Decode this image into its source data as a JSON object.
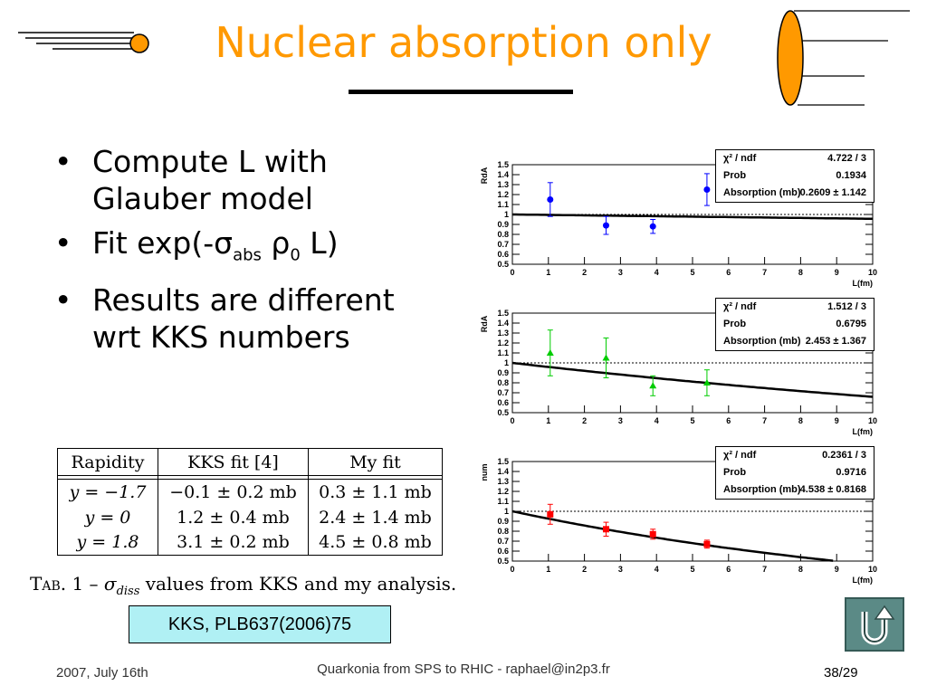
{
  "slide": {
    "title": "Nuclear absorption only",
    "bullets": [
      "Compute L with Glauber model",
      "Fit exp(-σ",
      "Results are different wrt KKS numbers"
    ],
    "bullet2_sub1": "abs",
    "bullet2_mid": " ρ",
    "bullet2_sub2": "0",
    "bullet2_end": " L)"
  },
  "table": {
    "headers": [
      "Rapidity",
      "KKS fit [4]",
      "My fit"
    ],
    "rows": [
      [
        "y = −1.7",
        "−0.1 ± 0.2 mb",
        "0.3 ± 1.1 mb"
      ],
      [
        "y = 0",
        "1.2 ± 0.4 mb",
        "2.4 ± 1.4 mb"
      ],
      [
        "y = 1.8",
        "3.1 ± 0.2 mb",
        "4.5 ± 0.8 mb"
      ]
    ],
    "caption_prefix": "Tab. 1 – ",
    "caption_sigma": "σ",
    "caption_sub": "diss",
    "caption_suffix": " values from KKS and my analysis."
  },
  "reference": "KKS, PLB637(2006)75",
  "footer": {
    "date": "2007, July 16th",
    "center": "Quarkonia from SPS to RHIC - raphael@in2p3.fr",
    "page": "38/29"
  },
  "colors": {
    "title": "#FF9900",
    "ref_box": "#b0f0f4",
    "series": [
      "#0000ff",
      "#00cc00",
      "#ff0000"
    ]
  },
  "icons": [
    "comet-icon",
    "ellipse-lines-icon",
    "u-turn-back-icon"
  ],
  "chart_data": [
    {
      "type": "scatter",
      "ylabel": "RdA",
      "xlabel": "L(fm)",
      "xlim": [
        0,
        10
      ],
      "ylim": [
        0.5,
        1.5
      ],
      "yticks": [
        "0.5",
        "0.6",
        "0.7",
        "0.8",
        "0.9",
        "1",
        "1.1",
        "1.2",
        "1.3",
        "1.4",
        "1.5"
      ],
      "xticks": [
        "0",
        "1",
        "2",
        "3",
        "4",
        "5",
        "6",
        "7",
        "8",
        "9",
        "10"
      ],
      "color": "#0000ff",
      "marker": "circle",
      "x": [
        1.05,
        2.6,
        3.9,
        5.4
      ],
      "y": [
        1.15,
        0.89,
        0.88,
        1.25
      ],
      "err": [
        0.17,
        0.09,
        0.07,
        0.16
      ],
      "fit_sigma_mb": 0.2609,
      "stats": [
        [
          "χ² / ndf",
          "4.722 / 3"
        ],
        [
          "Prob",
          "0.1934"
        ],
        [
          "Absorption (mb)",
          "0.2609 ± 1.142"
        ]
      ]
    },
    {
      "type": "scatter",
      "ylabel": "RdA",
      "xlabel": "L(fm)",
      "xlim": [
        0,
        10
      ],
      "ylim": [
        0.5,
        1.5
      ],
      "yticks": [
        "0.5",
        "0.6",
        "0.7",
        "0.8",
        "0.9",
        "1",
        "1.1",
        "1.2",
        "1.3",
        "1.4",
        "1.5"
      ],
      "xticks": [
        "0",
        "1",
        "2",
        "3",
        "4",
        "5",
        "6",
        "7",
        "8",
        "9",
        "10"
      ],
      "color": "#00cc00",
      "marker": "triangle",
      "x": [
        1.05,
        2.6,
        3.9,
        5.4
      ],
      "y": [
        1.1,
        1.05,
        0.77,
        0.8
      ],
      "err": [
        0.23,
        0.2,
        0.1,
        0.13
      ],
      "fit_sigma_mb": 2.453,
      "stats": [
        [
          "χ² / ndf",
          "1.512 / 3"
        ],
        [
          "Prob",
          "0.6795"
        ],
        [
          "Absorption (mb)",
          "2.453 ± 1.367"
        ]
      ]
    },
    {
      "type": "scatter",
      "ylabel": "num",
      "xlabel": "L(fm)",
      "xlim": [
        0,
        10
      ],
      "ylim": [
        0.5,
        1.5
      ],
      "yticks": [
        "0.5",
        "0.6",
        "0.7",
        "0.8",
        "0.9",
        "1",
        "1.1",
        "1.2",
        "1.3",
        "1.4",
        "1.5"
      ],
      "xticks": [
        "0",
        "1",
        "2",
        "3",
        "4",
        "5",
        "6",
        "7",
        "8",
        "9",
        "10"
      ],
      "color": "#ff0000",
      "marker": "square",
      "x": [
        1.05,
        2.6,
        3.9,
        5.4
      ],
      "y": [
        0.97,
        0.82,
        0.77,
        0.67
      ],
      "err": [
        0.1,
        0.07,
        0.05,
        0.04
      ],
      "fit_sigma_mb": 4.538,
      "stats": [
        [
          "χ² / ndf",
          "0.2361 / 3"
        ],
        [
          "Prob",
          "0.9716"
        ],
        [
          "Absorption (mb)",
          "4.538 ± 0.8168"
        ]
      ]
    }
  ]
}
